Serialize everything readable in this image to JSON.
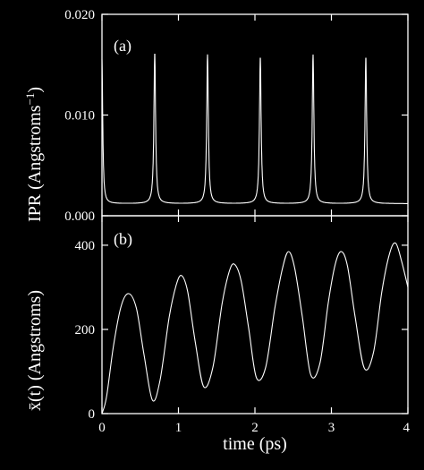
{
  "chart_data": [
    {
      "type": "line",
      "panel_label": "(a)",
      "ylabel": "IPR  (Angstroms",
      "ylabel_sup": "−1",
      "ylabel_close": ")",
      "xlim": [
        0,
        4
      ],
      "ylim": [
        0,
        0.02
      ],
      "yticks": [
        0,
        0.01,
        0.02
      ],
      "ytick_labels": [
        "0.000",
        "0.010",
        "0.020"
      ],
      "grid": false,
      "series": [
        {
          "baseline": 0.0012,
          "peaks": [
            {
              "x": 0.0,
              "y": 0.0155,
              "width": 0.012
            },
            {
              "x": 0.69,
              "y": 0.0162,
              "width": 0.013
            },
            {
              "x": 1.38,
              "y": 0.016,
              "width": 0.013
            },
            {
              "x": 2.07,
              "y": 0.0158,
              "width": 0.013
            },
            {
              "x": 2.76,
              "y": 0.016,
              "width": 0.013
            },
            {
              "x": 3.45,
              "y": 0.0158,
              "width": 0.013
            }
          ]
        }
      ]
    },
    {
      "type": "line",
      "panel_label": "(b)",
      "ylabel": "x̄(t) (Angstroms)",
      "xlabel": "time (ps)",
      "xlim": [
        0,
        4
      ],
      "ylim": [
        0,
        470
      ],
      "xticks": [
        0,
        1,
        2,
        3,
        4
      ],
      "xtick_labels": [
        "0",
        "1",
        "2",
        "3",
        "4"
      ],
      "yticks": [
        0,
        200,
        400
      ],
      "ytick_labels": [
        "0",
        "200",
        "400"
      ],
      "grid": false,
      "series": [
        {
          "points": [
            [
              0.0,
              0
            ],
            [
              0.06,
              40
            ],
            [
              0.15,
              160
            ],
            [
              0.25,
              255
            ],
            [
              0.35,
              285
            ],
            [
              0.45,
              250
            ],
            [
              0.55,
              140
            ],
            [
              0.66,
              32
            ],
            [
              0.76,
              80
            ],
            [
              0.88,
              230
            ],
            [
              0.97,
              305
            ],
            [
              1.04,
              328
            ],
            [
              1.12,
              290
            ],
            [
              1.22,
              170
            ],
            [
              1.33,
              64
            ],
            [
              1.45,
              110
            ],
            [
              1.57,
              260
            ],
            [
              1.66,
              335
            ],
            [
              1.73,
              355
            ],
            [
              1.82,
              315
            ],
            [
              1.92,
              200
            ],
            [
              2.02,
              85
            ],
            [
              2.14,
              110
            ],
            [
              2.26,
              250
            ],
            [
              2.36,
              345
            ],
            [
              2.44,
              385
            ],
            [
              2.52,
              345
            ],
            [
              2.62,
              230
            ],
            [
              2.73,
              92
            ],
            [
              2.85,
              120
            ],
            [
              2.96,
              265
            ],
            [
              3.05,
              355
            ],
            [
              3.13,
              385
            ],
            [
              3.21,
              350
            ],
            [
              3.31,
              230
            ],
            [
              3.43,
              108
            ],
            [
              3.55,
              145
            ],
            [
              3.66,
              290
            ],
            [
              3.76,
              380
            ],
            [
              3.84,
              405
            ],
            [
              3.92,
              360
            ],
            [
              4.0,
              300
            ]
          ]
        }
      ]
    }
  ]
}
